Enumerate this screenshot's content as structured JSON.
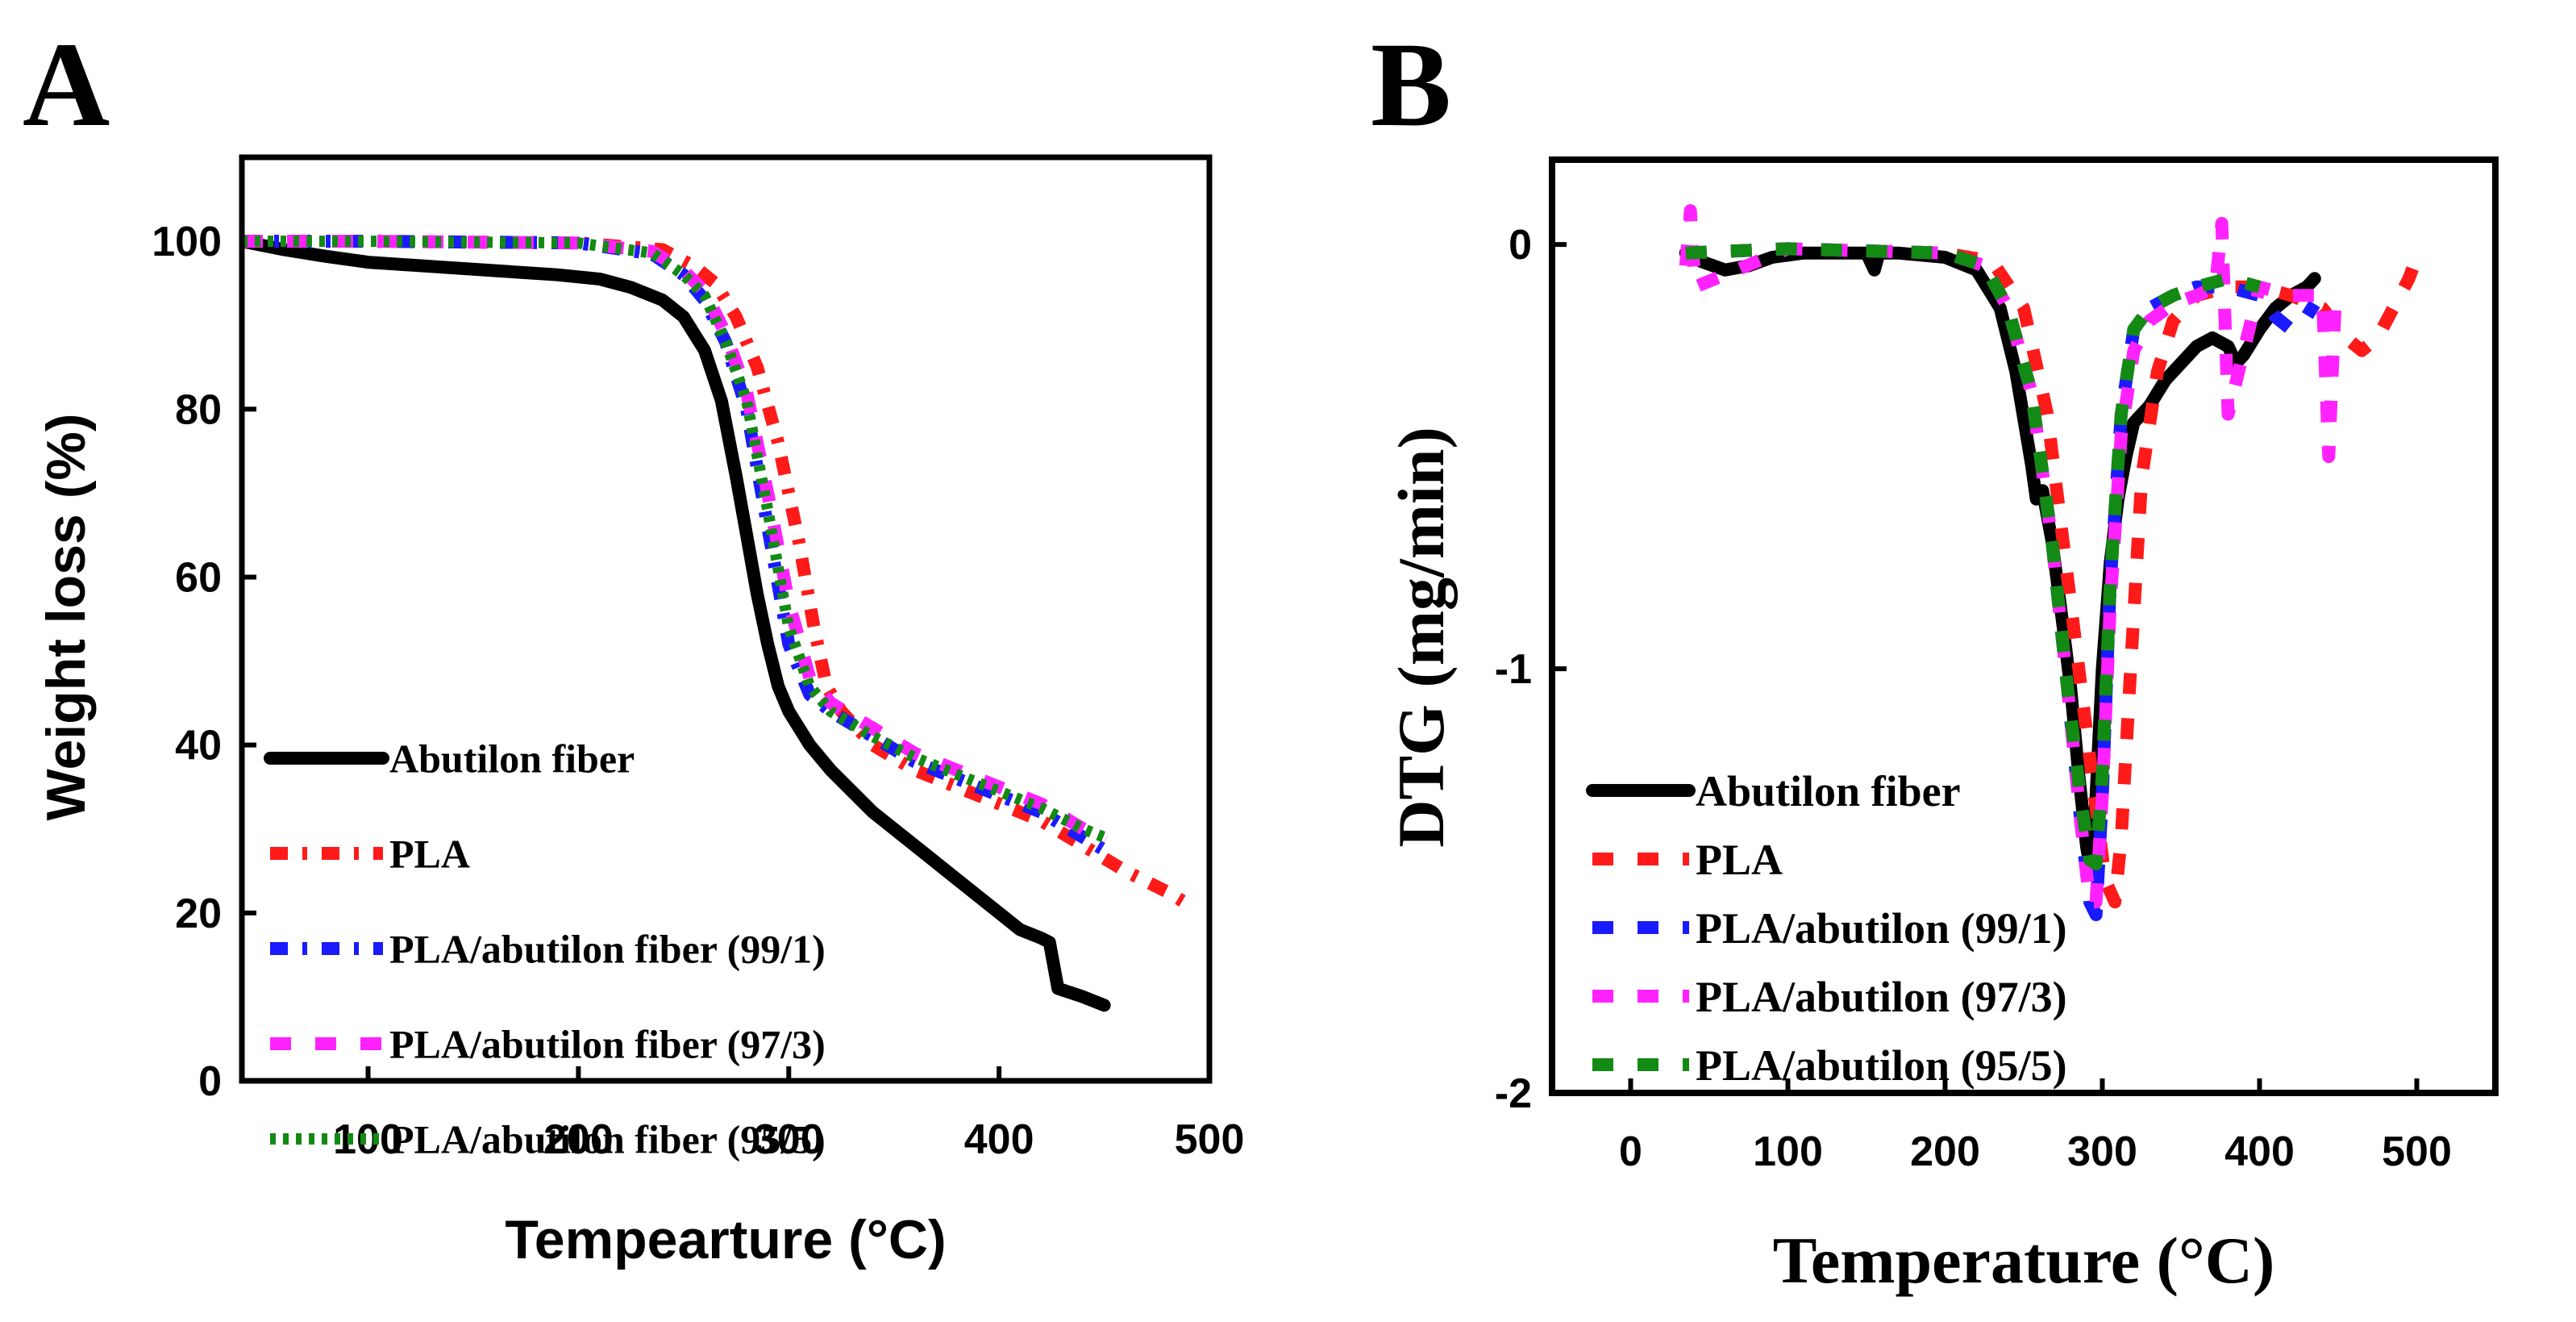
{
  "panel_labels": {
    "a": "A",
    "b": "B"
  },
  "colors": {
    "abutilon": "#000000",
    "pla": "#ff1a1a",
    "pla991": "#1a1aff",
    "pla973": "#ff22ff",
    "pla955": "#138a13"
  },
  "chart_data": [
    {
      "type": "line",
      "panel": "A",
      "title": "",
      "xlabel": "Tempearture (°C)",
      "ylabel": "Weight loss (%)",
      "xlim": [
        40,
        500
      ],
      "ylim": [
        0,
        110
      ],
      "xticks": [
        100,
        200,
        300,
        400,
        500
      ],
      "yticks": [
        0,
        20,
        40,
        60,
        80,
        100
      ],
      "legend_position": "bottom-left",
      "series": [
        {
          "name": "Abutilon fiber",
          "color_key": "abutilon",
          "style": "solid",
          "x": [
            40,
            60,
            80,
            100,
            130,
            160,
            190,
            210,
            225,
            240,
            250,
            260,
            268,
            275,
            280,
            285,
            290,
            295,
            300,
            310,
            320,
            340,
            360,
            380,
            400,
            410,
            420,
            424,
            428,
            440,
            450
          ],
          "y": [
            100,
            99,
            98.2,
            97.5,
            97,
            96.5,
            96,
            95.5,
            94.5,
            93,
            91,
            87,
            81,
            72,
            65,
            58,
            52,
            47,
            44,
            40,
            37,
            32,
            28,
            24,
            20,
            18,
            17,
            16.5,
            11,
            10,
            9
          ]
        },
        {
          "name": "PLA",
          "color_key": "pla",
          "style": "dash-dot",
          "x": [
            40,
            100,
            200,
            240,
            255,
            265,
            275,
            285,
            295,
            305,
            312,
            318,
            325,
            340,
            360,
            380,
            400,
            420,
            440,
            460,
            480,
            490
          ],
          "y": [
            100,
            100,
            99.8,
            99,
            97,
            95,
            91,
            85,
            76,
            64,
            54,
            47,
            44,
            40,
            37,
            35,
            33,
            31,
            28,
            25,
            22.5,
            21
          ]
        },
        {
          "name": "PLA/abutilon fiber (99/1)",
          "color_key": "pla991",
          "style": "dash-dot",
          "x": [
            40,
            100,
            200,
            235,
            250,
            260,
            270,
            280,
            290,
            300,
            310,
            320,
            340,
            360,
            380,
            400,
            420,
            440,
            450
          ],
          "y": [
            100,
            100,
            99.8,
            98.5,
            96,
            93,
            88,
            80,
            66,
            52,
            46,
            44,
            41,
            38,
            36,
            34,
            32,
            29,
            27.5
          ]
        },
        {
          "name": "PLA/abutilon fiber (97/3)",
          "color_key": "pla973",
          "style": "dash",
          "x": [
            40,
            100,
            200,
            235,
            250,
            260,
            270,
            280,
            290,
            300,
            310,
            320,
            340,
            360,
            380,
            400,
            420,
            440,
            450
          ],
          "y": [
            100,
            100,
            99.8,
            98.8,
            96.5,
            94,
            89,
            82,
            70,
            57,
            48,
            45,
            42,
            39,
            37,
            35,
            33,
            30,
            28.5
          ]
        },
        {
          "name": "PLA/abutilon fiber (95/5)",
          "color_key": "pla955",
          "style": "dot",
          "x": [
            40,
            100,
            200,
            235,
            250,
            260,
            270,
            280,
            290,
            300,
            310,
            320,
            340,
            360,
            380,
            400,
            420,
            440,
            450
          ],
          "y": [
            100,
            100,
            99.8,
            98.6,
            96,
            93.5,
            88,
            81,
            68,
            54,
            47,
            44,
            41,
            38.5,
            36.5,
            34.5,
            32.5,
            30,
            29
          ]
        }
      ]
    },
    {
      "type": "line",
      "panel": "B",
      "title": "",
      "xlabel": "Temperature (°C)",
      "ylabel": "DTG (mg/min)",
      "xlim": [
        -50,
        550
      ],
      "ylim": [
        -2.0,
        0.2
      ],
      "xticks": [
        0,
        100,
        200,
        300,
        400,
        500
      ],
      "yticks": [
        0,
        -1,
        -2
      ],
      "legend_position": "bottom-left",
      "series": [
        {
          "name": "Abutilon fiber",
          "color_key": "abutilon",
          "style": "solid",
          "x": [
            35,
            45,
            60,
            75,
            90,
            110,
            130,
            150,
            155,
            158,
            170,
            200,
            220,
            235,
            245,
            255,
            258,
            262,
            268,
            275,
            280,
            285,
            290,
            293,
            296,
            300,
            305,
            310,
            315,
            320,
            330,
            340,
            350,
            360,
            370,
            380,
            385,
            390,
            400,
            410,
            420,
            430,
            435
          ],
          "y": [
            -0.02,
            -0.04,
            -0.06,
            -0.05,
            -0.03,
            -0.02,
            -0.02,
            -0.02,
            -0.06,
            -0.02,
            -0.02,
            -0.03,
            -0.06,
            -0.15,
            -0.3,
            -0.52,
            -0.6,
            -0.58,
            -0.7,
            -0.9,
            -1.05,
            -1.25,
            -1.42,
            -1.48,
            -1.3,
            -1.0,
            -0.75,
            -0.6,
            -0.5,
            -0.42,
            -0.38,
            -0.32,
            -0.28,
            -0.24,
            -0.22,
            -0.24,
            -0.28,
            -0.26,
            -0.2,
            -0.15,
            -0.12,
            -0.1,
            -0.08
          ]
        },
        {
          "name": "PLA",
          "color_key": "pla",
          "style": "dash",
          "x": [
            35,
            100,
            200,
            230,
            250,
            265,
            275,
            285,
            295,
            302,
            308,
            312,
            318,
            325,
            335,
            345,
            360,
            380,
            400,
            420,
            440,
            455,
            465,
            475,
            485,
            495,
            500
          ],
          "y": [
            -0.02,
            -0.01,
            -0.02,
            -0.04,
            -0.15,
            -0.4,
            -0.7,
            -1.0,
            -1.3,
            -1.5,
            -1.55,
            -1.4,
            -1.0,
            -0.55,
            -0.3,
            -0.18,
            -0.12,
            -0.1,
            -0.1,
            -0.12,
            -0.15,
            -0.22,
            -0.25,
            -0.22,
            -0.15,
            -0.08,
            -0.03
          ]
        },
        {
          "name": "PLA/abutilon (99/1)",
          "color_key": "pla991",
          "style": "dash",
          "x": [
            35,
            100,
            200,
            225,
            240,
            255,
            268,
            278,
            286,
            292,
            296,
            300,
            305,
            312,
            320,
            330,
            345,
            360,
            380,
            400,
            410,
            420,
            430,
            435
          ],
          "y": [
            -0.02,
            -0.01,
            -0.02,
            -0.05,
            -0.15,
            -0.35,
            -0.7,
            -1.05,
            -1.35,
            -1.55,
            -1.58,
            -1.3,
            -0.8,
            -0.4,
            -0.2,
            -0.15,
            -0.12,
            -0.1,
            -0.1,
            -0.12,
            -0.17,
            -0.2,
            -0.17,
            -0.14
          ]
        },
        {
          "name": "PLA/abutilon (97/3)",
          "color_key": "pla973",
          "style": "dash",
          "x": [
            35,
            38,
            41,
            100,
            200,
            225,
            240,
            255,
            268,
            278,
            286,
            292,
            296,
            300,
            305,
            312,
            320,
            330,
            345,
            360,
            372,
            376,
            380,
            400,
            420,
            440,
            444,
            448,
            450
          ],
          "y": [
            -0.05,
            0.08,
            -0.1,
            -0.01,
            -0.02,
            -0.05,
            -0.15,
            -0.35,
            -0.7,
            -1.05,
            -1.35,
            -1.55,
            -1.55,
            -1.3,
            -0.85,
            -0.45,
            -0.25,
            -0.18,
            -0.14,
            -0.12,
            -0.1,
            0.05,
            -0.4,
            -0.1,
            -0.12,
            -0.12,
            -0.5,
            -0.15,
            -0.12
          ]
        },
        {
          "name": "PLA/abutilon (95/5)",
          "color_key": "pla955",
          "style": "dash",
          "x": [
            35,
            100,
            200,
            225,
            240,
            255,
            268,
            278,
            286,
            292,
            296,
            300,
            305,
            312,
            320,
            330,
            345,
            360,
            380,
            400
          ],
          "y": [
            -0.02,
            -0.01,
            -0.02,
            -0.05,
            -0.15,
            -0.35,
            -0.7,
            -1.05,
            -1.3,
            -1.45,
            -1.46,
            -1.25,
            -0.8,
            -0.4,
            -0.2,
            -0.15,
            -0.12,
            -0.1,
            -0.08,
            -0.1
          ]
        }
      ]
    }
  ]
}
